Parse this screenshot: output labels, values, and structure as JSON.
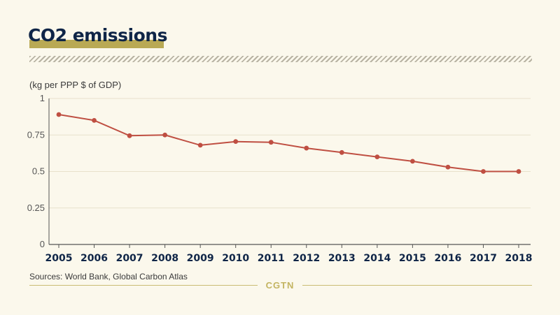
{
  "colors": {
    "background": "#fbf8ec",
    "title": "#0f2547",
    "title_highlight": "#b9a954",
    "line": "#bf4f42",
    "grid": "#e8e1cb",
    "brand": "#c3b461"
  },
  "chart_data": {
    "type": "line",
    "title": "CO2 emissions",
    "ylabel": "(kg per PPP $ of GDP)",
    "xlabel": "",
    "x": [
      "2005",
      "2006",
      "2007",
      "2008",
      "2009",
      "2010",
      "2011",
      "2012",
      "2013",
      "2014",
      "2015",
      "2016",
      "2017",
      "2018"
    ],
    "series": [
      {
        "values": [
          0.89,
          0.85,
          0.745,
          0.75,
          0.68,
          0.705,
          0.7,
          0.66,
          0.63,
          0.6,
          0.57,
          0.53,
          0.5,
          0.5
        ]
      }
    ],
    "ylim": [
      0,
      1
    ],
    "yticks": [
      0,
      0.25,
      0.5,
      0.75,
      1
    ],
    "ytick_labels": [
      "0",
      "0.25",
      "0.5",
      "0.75",
      "1"
    ],
    "grid": true
  },
  "footer": {
    "source": "Sources: World Bank, Global Carbon Atlas",
    "brand": "CGTN"
  }
}
